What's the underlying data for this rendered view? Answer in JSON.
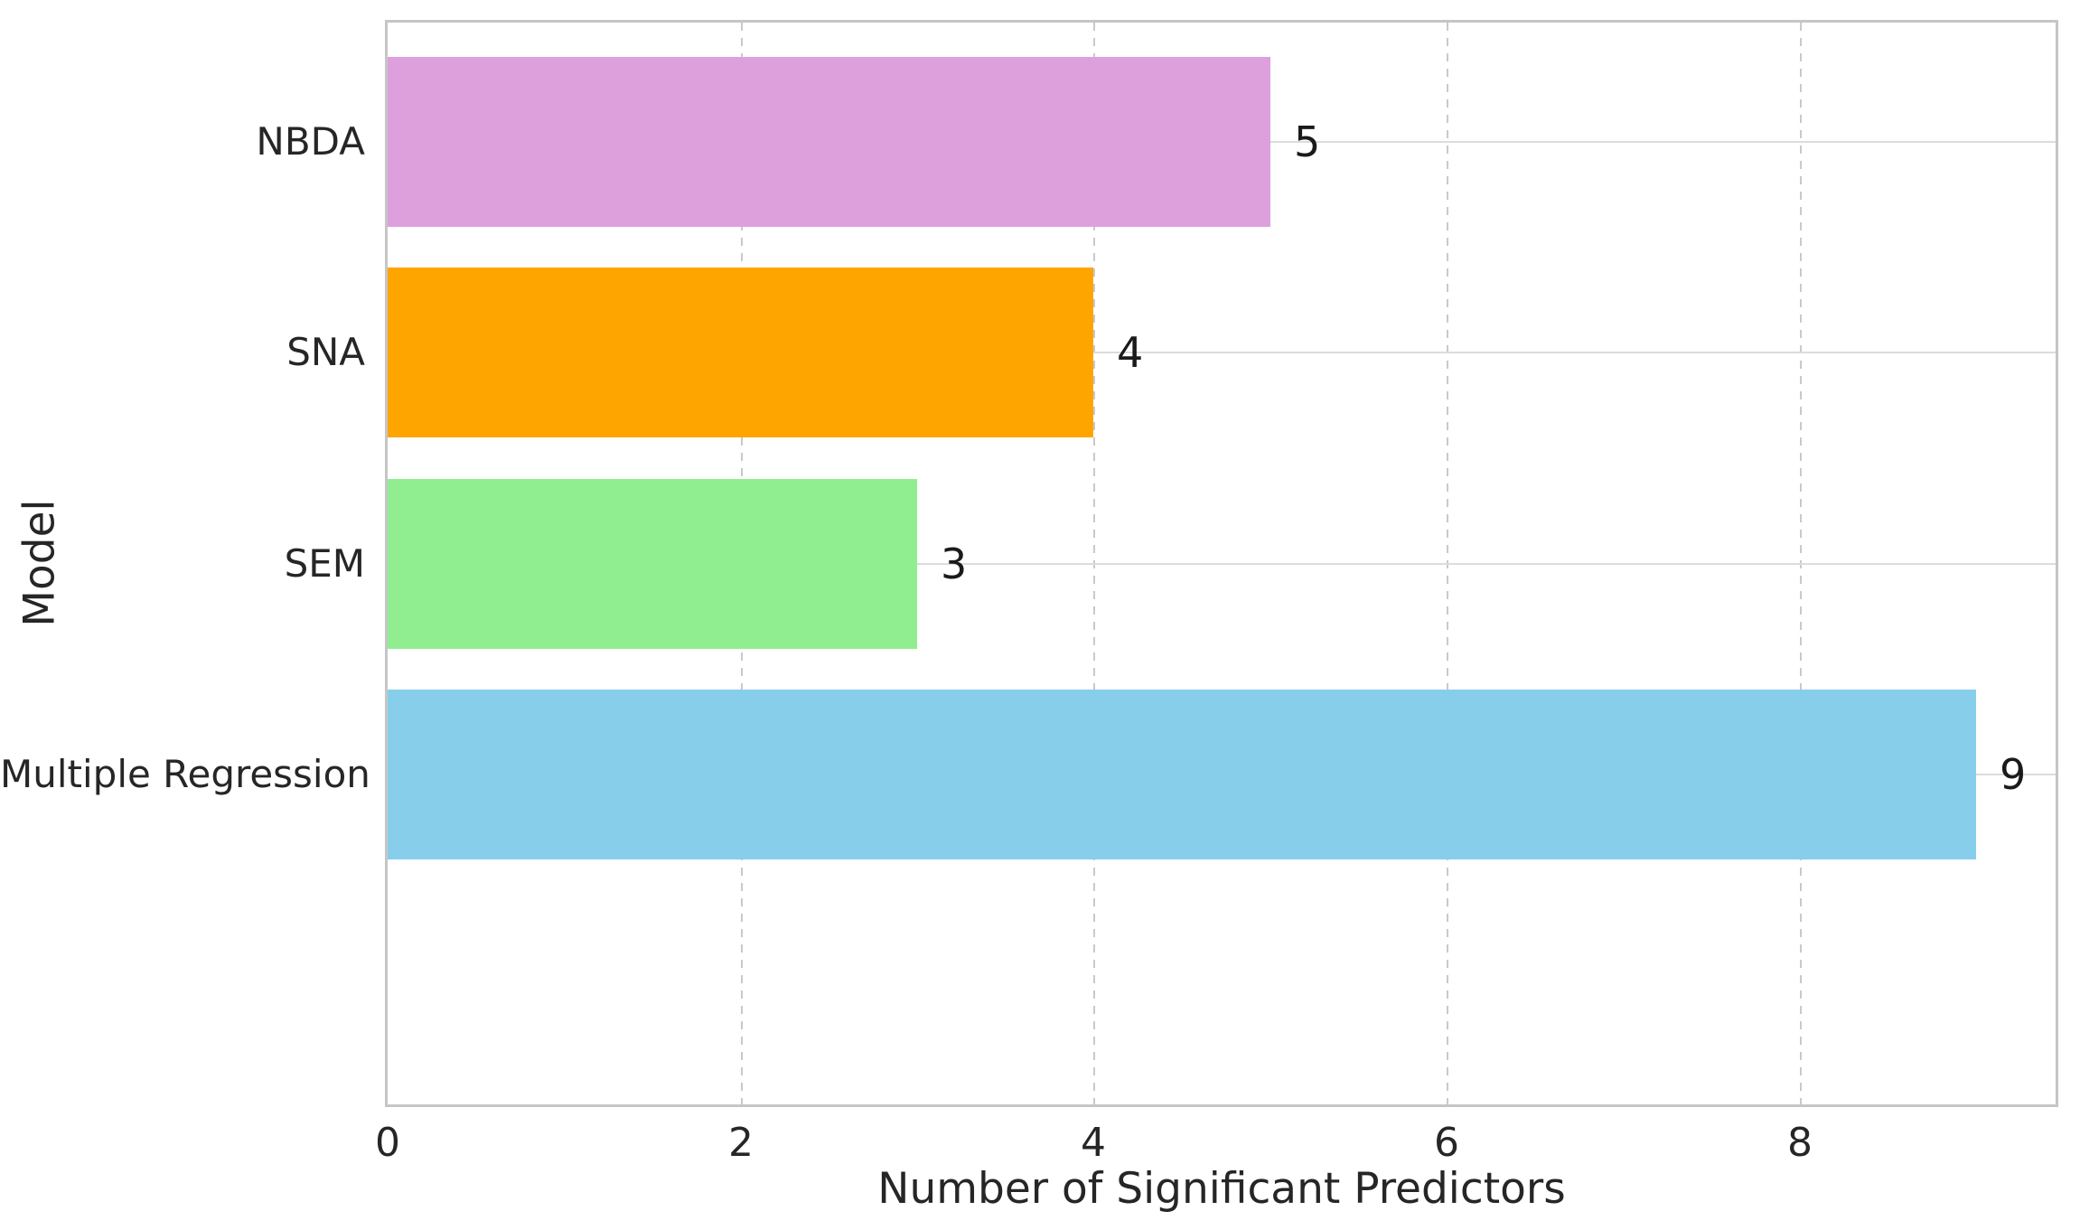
{
  "chart_data": {
    "type": "bar",
    "orientation": "horizontal",
    "title": "",
    "xlabel": "Number of Significant Predictors",
    "ylabel": "Model",
    "categories": [
      "NBDA",
      "SNA",
      "SEM",
      "Multiple Regression"
    ],
    "values": [
      5,
      4,
      3,
      9
    ],
    "value_labels": [
      "5",
      "4",
      "3",
      "9"
    ],
    "bar_colors": [
      "#dda0dd",
      "#ffa500",
      "#90ee90",
      "#87ceeb"
    ],
    "xticks": [
      0,
      2,
      4,
      6,
      8
    ],
    "xlim": [
      0,
      9.45
    ],
    "grid": {
      "vertical": "dashed",
      "horizontal": "solid",
      "vertical_color": "#c9c9c9",
      "horizontal_color": "#dcdcdc"
    },
    "legend": "none",
    "plot_background": "#ffffff",
    "spine_color": "#c6c6c6",
    "text_color": "#262626"
  }
}
